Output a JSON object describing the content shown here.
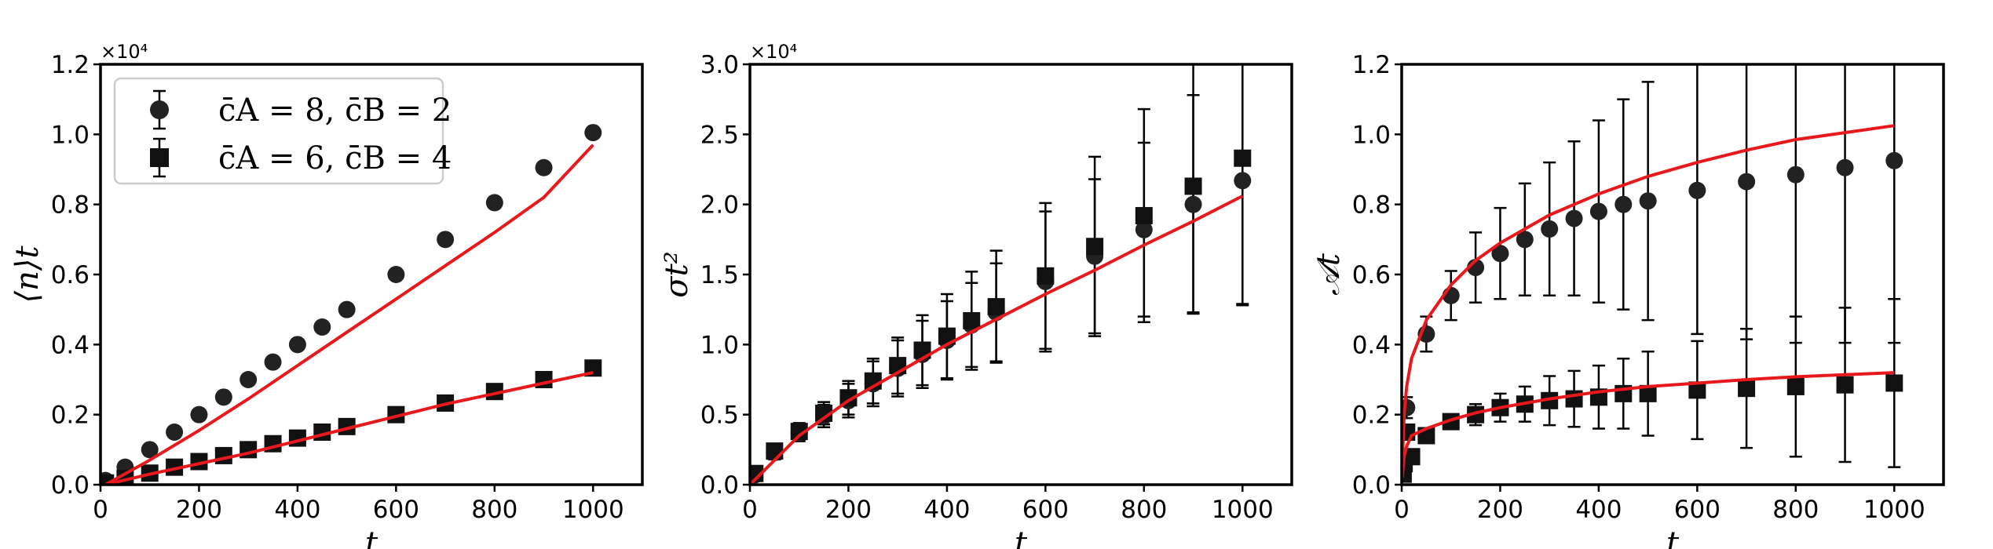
{
  "chart_data": [
    {
      "type": "scatter",
      "title": "",
      "xlabel": "t",
      "ylabel": "⟨n⟩t",
      "y_offset": "×10⁴",
      "xlim": [
        0,
        1100
      ],
      "ylim": [
        0,
        1.2
      ],
      "x_ticks": [
        "0",
        "200",
        "400",
        "600",
        "800",
        "1000"
      ],
      "y_ticks": [
        "0.0",
        "0.2",
        "0.4",
        "0.6",
        "0.8",
        "1.0",
        "1.2"
      ],
      "grid": false,
      "legend": {
        "position": "top-left",
        "entries": [
          "c̄A = 8, c̄B = 2",
          "c̄A = 6, c̄B = 4"
        ]
      },
      "series": [
        {
          "name": "c̄A = 8, c̄B = 2",
          "marker": "circle",
          "x": [
            10,
            50,
            100,
            150,
            200,
            250,
            300,
            350,
            400,
            450,
            500,
            600,
            700,
            800,
            900,
            1000
          ],
          "y": [
            0.012,
            0.05,
            0.1,
            0.15,
            0.2,
            0.25,
            0.3,
            0.35,
            0.4,
            0.45,
            0.5,
            0.6,
            0.7,
            0.805,
            0.905,
            1.005
          ],
          "yerr": [
            0.004,
            0.006,
            0.008,
            0.008,
            0.008,
            0.008,
            0.008,
            0.008,
            0.008,
            0.008,
            0.008,
            0.008,
            0.008,
            0.008,
            0.008,
            0.008
          ]
        },
        {
          "name": "c̄A = 6, c̄B = 4",
          "marker": "square",
          "x": [
            10,
            50,
            100,
            150,
            200,
            250,
            300,
            350,
            400,
            450,
            500,
            600,
            700,
            800,
            900,
            1000
          ],
          "y": [
            0.005,
            0.018,
            0.033,
            0.05,
            0.066,
            0.083,
            0.1,
            0.117,
            0.133,
            0.15,
            0.166,
            0.2,
            0.233,
            0.266,
            0.3,
            0.333
          ],
          "yerr": [
            0.002,
            0.003,
            0.004,
            0.004,
            0.004,
            0.004,
            0.004,
            0.004,
            0.004,
            0.004,
            0.004,
            0.004,
            0.004,
            0.004,
            0.004,
            0.004
          ]
        }
      ],
      "fits": [
        {
          "color": "#e8191c",
          "x": [
            10,
            100,
            200,
            300,
            400,
            500,
            600,
            700,
            800,
            900,
            1000
          ],
          "y": [
            0.0,
            0.07,
            0.155,
            0.245,
            0.34,
            0.435,
            0.53,
            0.625,
            0.72,
            0.82,
            0.97
          ]
        },
        {
          "color": "#e8191c",
          "x": [
            10,
            100,
            200,
            300,
            400,
            500,
            600,
            700,
            800,
            900,
            1000
          ],
          "y": [
            0.0,
            0.03,
            0.06,
            0.09,
            0.125,
            0.16,
            0.195,
            0.23,
            0.26,
            0.29,
            0.32
          ]
        }
      ]
    },
    {
      "type": "scatter",
      "title": "",
      "xlabel": "t",
      "ylabel": "σt²",
      "y_offset": "×10⁴",
      "xlim": [
        0,
        1100
      ],
      "ylim": [
        0,
        3.0
      ],
      "x_ticks": [
        "0",
        "200",
        "400",
        "600",
        "800",
        "1000"
      ],
      "y_ticks": [
        "0.0",
        "0.5",
        "1.0",
        "1.5",
        "2.0",
        "2.5",
        "3.0"
      ],
      "grid": false,
      "series": [
        {
          "name": "c̄A = 8, c̄B = 2",
          "marker": "circle",
          "x": [
            10,
            50,
            100,
            150,
            200,
            250,
            300,
            350,
            400,
            450,
            500,
            600,
            700,
            800,
            900,
            1000
          ],
          "y": [
            0.07,
            0.23,
            0.37,
            0.49,
            0.6,
            0.72,
            0.83,
            0.93,
            1.03,
            1.14,
            1.23,
            1.45,
            1.63,
            1.82,
            2.0,
            2.17
          ],
          "yerr": [
            0.03,
            0.05,
            0.06,
            0.08,
            0.12,
            0.16,
            0.2,
            0.24,
            0.28,
            0.3,
            0.35,
            0.5,
            0.55,
            0.62,
            0.78,
            0.88
          ]
        },
        {
          "name": "c̄A = 6, c̄B = 4",
          "marker": "square",
          "x": [
            10,
            50,
            100,
            150,
            200,
            250,
            300,
            350,
            400,
            450,
            500,
            600,
            700,
            800,
            900,
            1000
          ],
          "y": [
            0.08,
            0.24,
            0.38,
            0.51,
            0.62,
            0.74,
            0.85,
            0.96,
            1.06,
            1.17,
            1.27,
            1.49,
            1.7,
            1.92,
            2.13,
            2.33
          ],
          "yerr": [
            0.03,
            0.05,
            0.06,
            0.08,
            0.12,
            0.16,
            0.2,
            0.25,
            0.3,
            0.35,
            0.4,
            0.52,
            0.64,
            0.76,
            0.9,
            1.05
          ]
        }
      ],
      "fits": [
        {
          "color": "#e8191c",
          "x": [
            0,
            100,
            200,
            300,
            400,
            500,
            600,
            700,
            800,
            900,
            1000
          ],
          "y": [
            0.0,
            0.35,
            0.6,
            0.8,
            1.0,
            1.18,
            1.36,
            1.53,
            1.71,
            1.88,
            2.06
          ]
        }
      ]
    },
    {
      "type": "scatter",
      "title": "",
      "xlabel": "t",
      "ylabel": "𝒜t",
      "xlim": [
        0,
        1100
      ],
      "ylim": [
        0,
        1.2
      ],
      "x_ticks": [
        "0",
        "200",
        "400",
        "600",
        "800",
        "1000"
      ],
      "y_ticks": [
        "0.0",
        "0.2",
        "0.4",
        "0.6",
        "0.8",
        "1.0",
        "1.2"
      ],
      "grid": false,
      "series": [
        {
          "name": "c̄A = 8, c̄B = 2",
          "marker": "circle",
          "x": [
            10,
            50,
            100,
            150,
            200,
            250,
            300,
            350,
            400,
            450,
            500,
            600,
            700,
            800,
            900,
            1000
          ],
          "y": [
            0.22,
            0.43,
            0.54,
            0.62,
            0.66,
            0.7,
            0.73,
            0.76,
            0.78,
            0.8,
            0.81,
            0.84,
            0.865,
            0.885,
            0.905,
            0.925
          ],
          "yerr": [
            0.03,
            0.05,
            0.07,
            0.1,
            0.13,
            0.16,
            0.19,
            0.22,
            0.26,
            0.3,
            0.34,
            0.41,
            0.45,
            0.48,
            0.5,
            0.52
          ]
        },
        {
          "name": "c̄A = 6, c̄B = 4",
          "marker": "square",
          "x": [
            3,
            5,
            10,
            20,
            50,
            100,
            150,
            200,
            250,
            300,
            350,
            400,
            450,
            500,
            600,
            700,
            800,
            900,
            1000
          ],
          "y": [
            0.03,
            0.06,
            0.15,
            0.08,
            0.14,
            0.18,
            0.2,
            0.22,
            0.23,
            0.24,
            0.245,
            0.25,
            0.26,
            0.26,
            0.27,
            0.275,
            0.28,
            0.285,
            0.29
          ],
          "yerr": [
            0.01,
            0.01,
            0.02,
            0.02,
            0.02,
            0.02,
            0.03,
            0.04,
            0.05,
            0.07,
            0.08,
            0.09,
            0.1,
            0.12,
            0.14,
            0.17,
            0.2,
            0.22,
            0.24
          ]
        }
      ],
      "fits": [
        {
          "color": "#e8191c",
          "x": [
            1,
            5,
            10,
            20,
            50,
            100,
            150,
            200,
            300,
            400,
            500,
            600,
            700,
            800,
            900,
            1000
          ],
          "y": [
            0.05,
            0.2,
            0.28,
            0.36,
            0.47,
            0.57,
            0.64,
            0.69,
            0.77,
            0.83,
            0.88,
            0.92,
            0.955,
            0.985,
            1.005,
            1.025
          ]
        },
        {
          "color": "#e8191c",
          "x": [
            1,
            5,
            10,
            20,
            50,
            100,
            150,
            200,
            300,
            400,
            500,
            600,
            700,
            800,
            900,
            1000
          ],
          "y": [
            0.02,
            0.08,
            0.11,
            0.14,
            0.16,
            0.185,
            0.205,
            0.22,
            0.245,
            0.265,
            0.28,
            0.29,
            0.3,
            0.308,
            0.314,
            0.32
          ]
        }
      ]
    }
  ]
}
